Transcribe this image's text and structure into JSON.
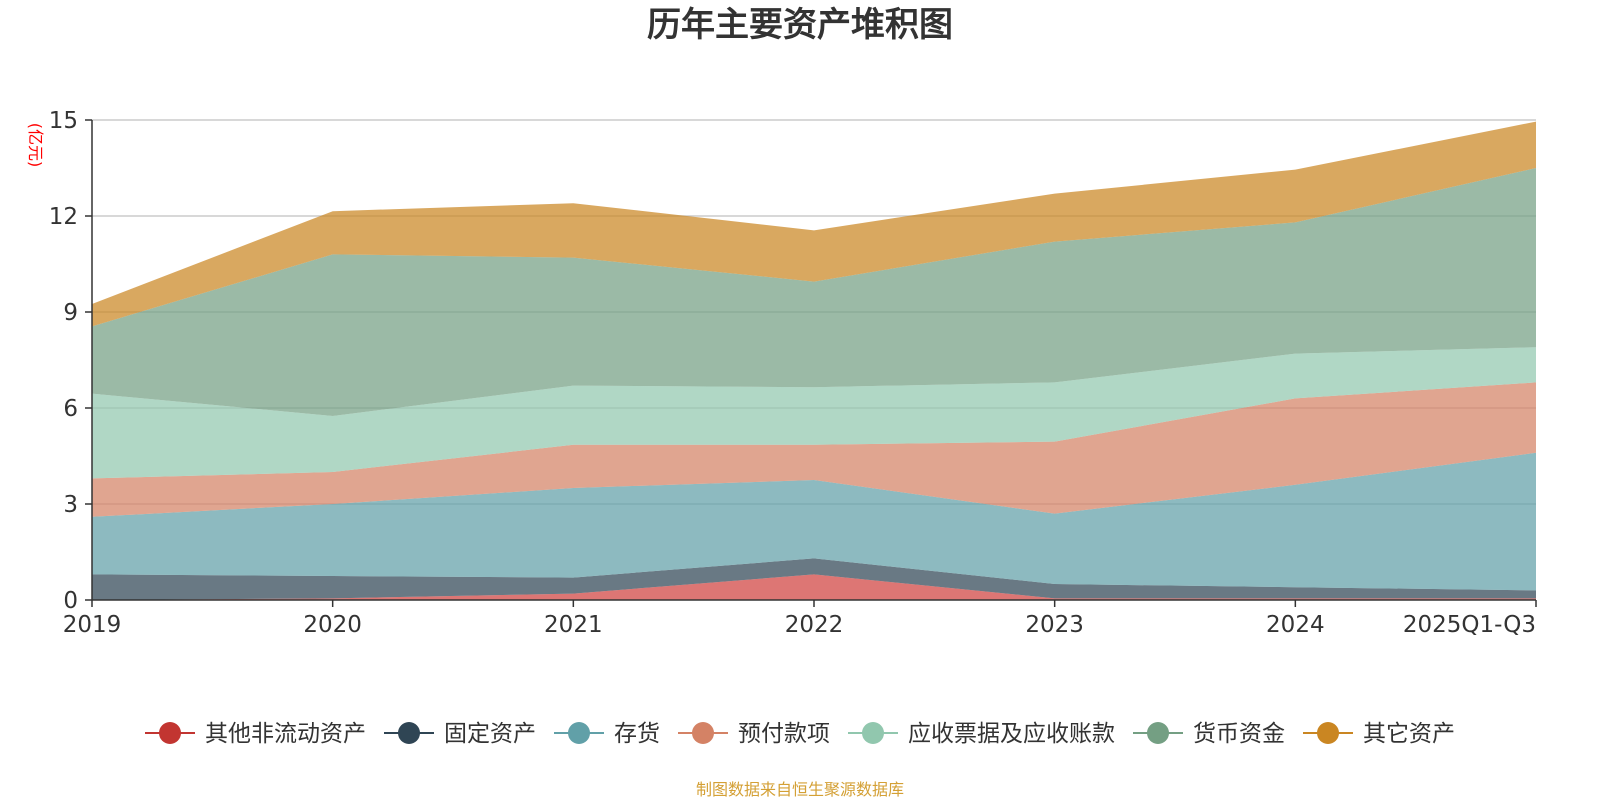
{
  "chart_data": {
    "type": "area",
    "stacked": true,
    "title": "历年主要资产堆积图",
    "ylabel": "(亿元)",
    "xlabel": "",
    "categories": [
      "2019",
      "2020",
      "2021",
      "2022",
      "2023",
      "2024",
      "2025Q1-Q3"
    ],
    "ylim": [
      0,
      15
    ],
    "yticks": [
      0,
      3,
      6,
      9,
      12,
      15
    ],
    "grid": true,
    "legend_position": "bottom",
    "series": [
      {
        "name": "其他非流动资产",
        "color": "#d0413f",
        "marker_color": "#c23531",
        "values": [
          0.0,
          0.05,
          0.2,
          0.8,
          0.05,
          0.05,
          0.05
        ]
      },
      {
        "name": "固定资产",
        "color": "#2f4554",
        "marker_color": "#2f4554",
        "values": [
          0.8,
          0.7,
          0.5,
          0.5,
          0.45,
          0.35,
          0.25
        ]
      },
      {
        "name": "存货",
        "color": "#61a0a8",
        "marker_color": "#61a0a8",
        "values": [
          1.8,
          2.25,
          2.8,
          2.45,
          2.2,
          3.2,
          4.3
        ]
      },
      {
        "name": "预付款项",
        "color": "#d48265",
        "marker_color": "#d48265",
        "values": [
          1.2,
          1.0,
          1.35,
          1.1,
          2.25,
          2.7,
          2.2
        ]
      },
      {
        "name": "应收票据及应收账款",
        "color": "#91c7ae",
        "marker_color": "#91c7ae",
        "values": [
          2.65,
          1.75,
          1.85,
          1.8,
          1.85,
          1.4,
          1.1
        ]
      },
      {
        "name": "货币资金",
        "color": "#749f83",
        "marker_color": "#749f83",
        "values": [
          2.1,
          5.05,
          4.0,
          3.3,
          4.4,
          4.1,
          5.6
        ]
      },
      {
        "name": "其它资产",
        "color": "#ca8622",
        "marker_color": "#ca8622",
        "values": [
          0.7,
          1.35,
          1.7,
          1.6,
          1.5,
          1.65,
          1.45
        ]
      }
    ],
    "source_note": "制图数据来自恒生聚源数据库",
    "colors": {
      "title": "#333333",
      "axis": "#333333",
      "grid": "#cccccc",
      "ylabel": "#ff0000",
      "source": "#d4a035"
    }
  }
}
